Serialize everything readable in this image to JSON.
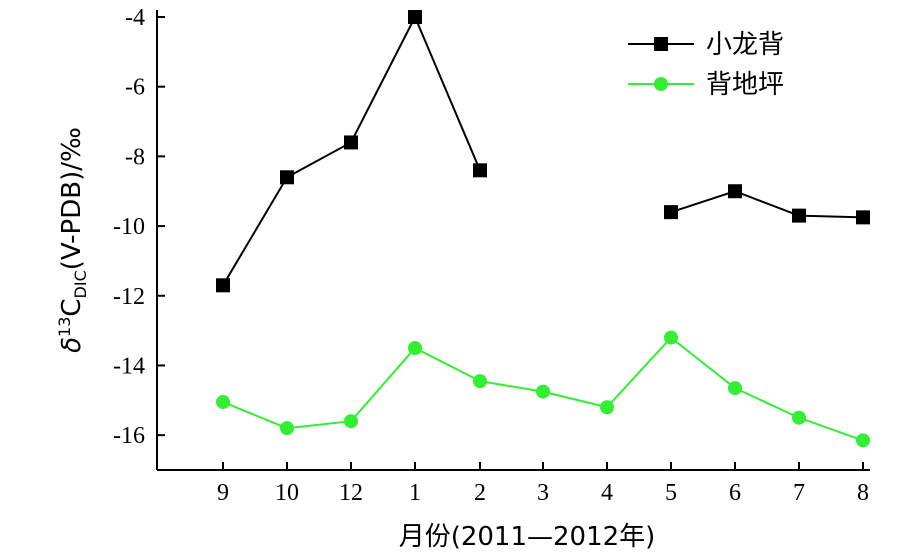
{
  "chart_data": {
    "type": "line",
    "xlabel": "月份(2011—2012年)",
    "ylabel": {
      "prefix": "δ",
      "sup": "13",
      "main": "C",
      "sub": "DIC",
      "suffix": "(V-PDB)/‰"
    },
    "categories": [
      "9",
      "10",
      "12",
      "1",
      "2",
      "3",
      "4",
      "5",
      "6",
      "7",
      "8"
    ],
    "yticks": [
      "-4",
      "-6",
      "-8",
      "-10",
      "-12",
      "-14",
      "-16"
    ],
    "ytick_values": [
      -4,
      -6,
      -8,
      -10,
      -12,
      -14,
      -16
    ],
    "ylim": [
      -17,
      -4
    ],
    "grid": false,
    "legend_position": "top-right",
    "series": [
      {
        "name": "小龙背",
        "color": "#000000",
        "marker": "square",
        "values": [
          -11.7,
          -8.6,
          -7.6,
          -4.0,
          -8.4,
          null,
          null,
          -9.6,
          -9.0,
          -9.7,
          -9.75
        ]
      },
      {
        "name": "背地坪",
        "color": "#33ee33",
        "marker": "circle",
        "values": [
          -15.05,
          -15.8,
          -15.6,
          -13.5,
          -14.45,
          -14.75,
          -15.2,
          -13.2,
          -14.65,
          -15.5,
          -16.15
        ]
      }
    ]
  }
}
